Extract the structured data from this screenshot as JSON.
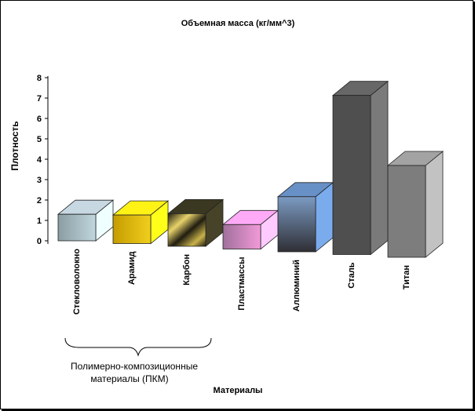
{
  "chart_data": {
    "type": "bar",
    "title": "Объемная масса (кг/мм^3)",
    "ylabel": "Плотность",
    "xlabel": "Материалы",
    "ylim": [
      0,
      8
    ],
    "yticks": [
      "0",
      "1",
      "2",
      "3",
      "4",
      "5",
      "6",
      "7",
      "8"
    ],
    "categories": [
      "Стекловолокно",
      "Арамид",
      "Карбон",
      "Пластмассы",
      "Аллюминий",
      "Сталь",
      "Титан"
    ],
    "values": [
      1.3,
      1.4,
      1.6,
      1.2,
      2.7,
      7.8,
      4.5
    ],
    "colors": [
      "#9aa6ae",
      "#e2bb10",
      "#2d2b1a",
      "#d183be",
      "#4f6f99",
      "#4f4f4f",
      "#7d7d7d"
    ],
    "group_annotation": {
      "label_line1": "Полимерно-композиционные",
      "label_line2": "материалы (ПКМ)",
      "spans": [
        "Стекловолокно",
        "Арамид",
        "Карбон"
      ]
    },
    "grid": false,
    "legend": "none"
  }
}
